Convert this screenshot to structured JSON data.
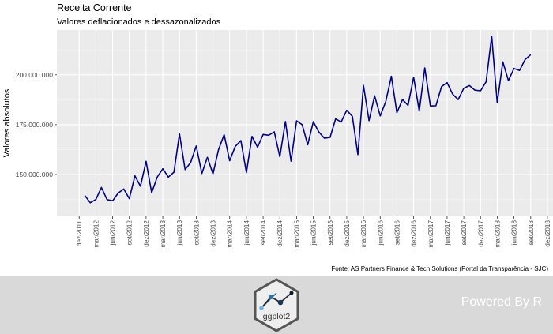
{
  "chart_data": {
    "type": "line",
    "title": "Receita Corrente",
    "subtitle": "Valores deflacionados e dessazonalizados",
    "xlabel": "",
    "ylabel": "Valores absolutos",
    "caption": "Fonte: AS Partners Finance & Tech Solutions (Portal da Transparência - SJC)",
    "series_color": "#00008b",
    "panel_color": "#ebebeb",
    "grid": true,
    "xlim": [
      "2011-08",
      "2019-01"
    ],
    "ylim": [
      129000000,
      222500000
    ],
    "y_ticks": [
      150000000,
      175000000,
      200000000
    ],
    "y_tick_labels": [
      "150.000.000",
      "175.000.000",
      "200.000.000"
    ],
    "x_tick_labels": [
      "dez/2011",
      "mar/2012",
      "jun/2012",
      "set/2012",
      "dez/2012",
      "mar/2013",
      "jun/2013",
      "set/2013",
      "dez/2013",
      "mar/2014",
      "jun/2014",
      "set/2014",
      "dez/2014",
      "mar/2015",
      "jun/2015",
      "set/2015",
      "dez/2015",
      "mar/2016",
      "jun/2016",
      "set/2016",
      "dez/2016",
      "mar/2017",
      "jun/2017",
      "set/2017",
      "dez/2017",
      "mar/2018",
      "jun/2018",
      "set/2018",
      "dez/2018"
    ],
    "x_start": "2012-01",
    "x_end": "2018-09",
    "values": [
      139500000,
      135800000,
      137500000,
      143500000,
      137400000,
      136800000,
      140700000,
      142700000,
      137900000,
      149300000,
      144100000,
      156600000,
      140900000,
      148700000,
      152900000,
      148700000,
      151200000,
      170400000,
      152500000,
      156000000,
      164300000,
      150500000,
      158600000,
      150300000,
      162400000,
      170000000,
      156900000,
      164100000,
      167000000,
      151000000,
      169100000,
      163700000,
      170100000,
      169700000,
      171400000,
      158900000,
      176600000,
      156700000,
      176900000,
      175000000,
      164900000,
      176500000,
      171300000,
      168200000,
      168600000,
      177900000,
      176400000,
      182200000,
      179200000,
      160000000,
      194700000,
      177000000,
      189500000,
      179400000,
      186600000,
      199300000,
      181000000,
      187600000,
      184700000,
      198800000,
      181800000,
      203500000,
      184400000,
      184500000,
      194100000,
      196100000,
      190300000,
      187600000,
      193300000,
      194600000,
      192300000,
      192000000,
      196500000,
      219400000,
      186000000,
      206500000,
      197100000,
      203200000,
      202200000,
      207700000,
      210100000
    ]
  },
  "footer": {
    "logo_text": "ggplot2",
    "powered_text": "Powered By R"
  },
  "colors": {
    "footer_bg": "#d9d9d9",
    "logo_hex": "#555555",
    "logo_fill": "#eeeeee"
  }
}
